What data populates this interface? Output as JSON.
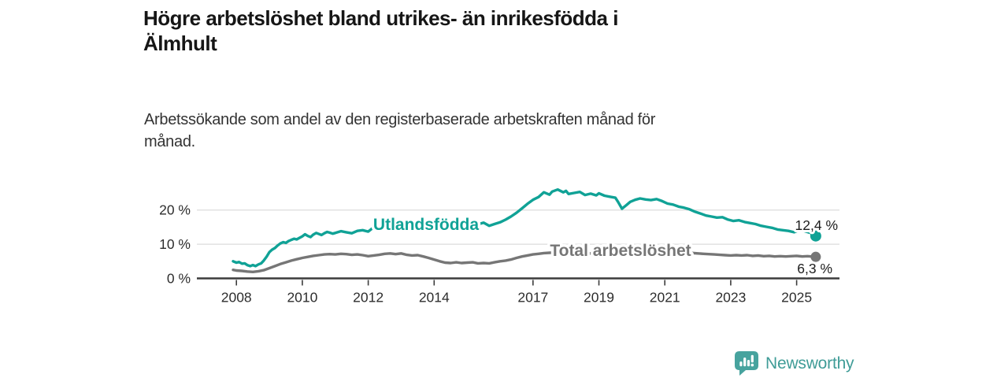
{
  "header": {
    "title_lines": [
      "Högre arbetslöshet bland utrikes- än inrikesfödda i",
      "Älmhult"
    ],
    "subtitle_lines": [
      "Arbetssökande som andel av den registerbaserade arbetskraften månad för",
      "månad."
    ]
  },
  "footer": {
    "brand": "Newsworthy",
    "logo_icon": "bar-chart-speech-bubble-icon"
  },
  "colors": {
    "accent_teal": "#10a296",
    "series_gray": "#767676",
    "grid": "#dcdcdc",
    "axis": "#3b3b3b",
    "text_dark": "#1d1d1d",
    "logo_teal": "#47a39e"
  },
  "chart_data": {
    "type": "line",
    "title": "Högre arbetslöshet bland utrikes- än inrikesfödda i Älmhult",
    "subtitle": "Arbetssökande som andel av den registerbaserade arbetskraften månad för månad.",
    "xlabel": "",
    "ylabel": "",
    "xlim": [
      2006.8,
      2026.3
    ],
    "ylim": [
      0,
      28
    ],
    "grid": "horizontal",
    "legend_position": "inline-on-line",
    "yticks": [
      0,
      10,
      20
    ],
    "ytick_labels": [
      "0 %",
      "10 %",
      "20 %"
    ],
    "xticks": [
      2008,
      2010,
      2012,
      2014,
      2017,
      2019,
      2021,
      2023,
      2025
    ],
    "xtick_labels": [
      "2008",
      "2010",
      "2012",
      "2014",
      "2017",
      "2019",
      "2021",
      "2023",
      "2025"
    ],
    "series": [
      {
        "name": "Utlandsfödda",
        "color": "#10a296",
        "end_value": 12.4,
        "end_label": "12,4 %",
        "points": [
          [
            2007.9,
            5.0
          ],
          [
            2008.0,
            4.6
          ],
          [
            2008.08,
            4.8
          ],
          [
            2008.17,
            4.3
          ],
          [
            2008.25,
            4.4
          ],
          [
            2008.33,
            3.9
          ],
          [
            2008.42,
            3.6
          ],
          [
            2008.5,
            3.9
          ],
          [
            2008.58,
            3.6
          ],
          [
            2008.67,
            4.1
          ],
          [
            2008.75,
            4.4
          ],
          [
            2008.83,
            5.2
          ],
          [
            2008.92,
            6.4
          ],
          [
            2009.0,
            7.7
          ],
          [
            2009.08,
            8.4
          ],
          [
            2009.17,
            8.9
          ],
          [
            2009.25,
            9.6
          ],
          [
            2009.33,
            10.2
          ],
          [
            2009.42,
            10.6
          ],
          [
            2009.5,
            10.4
          ],
          [
            2009.58,
            10.9
          ],
          [
            2009.67,
            11.3
          ],
          [
            2009.75,
            11.6
          ],
          [
            2009.83,
            11.4
          ],
          [
            2009.92,
            11.9
          ],
          [
            2010.0,
            12.3
          ],
          [
            2010.08,
            12.9
          ],
          [
            2010.17,
            12.4
          ],
          [
            2010.25,
            12.1
          ],
          [
            2010.33,
            12.8
          ],
          [
            2010.42,
            13.3
          ],
          [
            2010.5,
            13.0
          ],
          [
            2010.58,
            12.7
          ],
          [
            2010.67,
            13.2
          ],
          [
            2010.75,
            13.6
          ],
          [
            2010.83,
            13.4
          ],
          [
            2010.92,
            13.1
          ],
          [
            2011.0,
            13.3
          ],
          [
            2011.17,
            13.8
          ],
          [
            2011.33,
            13.5
          ],
          [
            2011.5,
            13.2
          ],
          [
            2011.67,
            13.9
          ],
          [
            2011.83,
            14.1
          ],
          [
            2012.0,
            13.7
          ],
          [
            2012.17,
            15.0
          ],
          [
            2012.33,
            14.5
          ],
          [
            2012.5,
            14.9
          ],
          [
            2012.67,
            14.4
          ],
          [
            2012.83,
            14.7
          ],
          [
            2013.0,
            15.1
          ],
          [
            2013.17,
            14.7
          ],
          [
            2013.33,
            15.0
          ],
          [
            2013.5,
            14.5
          ],
          [
            2013.67,
            14.8
          ],
          [
            2013.83,
            14.3
          ],
          [
            2014.0,
            14.6
          ],
          [
            2014.17,
            14.1
          ],
          [
            2014.33,
            14.4
          ],
          [
            2014.5,
            14.7
          ],
          [
            2014.67,
            15.1
          ],
          [
            2014.83,
            14.8
          ],
          [
            2015.0,
            15.2
          ],
          [
            2015.17,
            15.5
          ],
          [
            2015.33,
            15.8
          ],
          [
            2015.5,
            16.3
          ],
          [
            2015.67,
            15.4
          ],
          [
            2015.83,
            15.9
          ],
          [
            2016.0,
            16.4
          ],
          [
            2016.17,
            17.2
          ],
          [
            2016.33,
            18.1
          ],
          [
            2016.5,
            19.2
          ],
          [
            2016.67,
            20.5
          ],
          [
            2016.83,
            21.8
          ],
          [
            2017.0,
            23.0
          ],
          [
            2017.17,
            23.8
          ],
          [
            2017.33,
            25.2
          ],
          [
            2017.5,
            24.5
          ],
          [
            2017.58,
            25.4
          ],
          [
            2017.75,
            26.0
          ],
          [
            2017.92,
            25.2
          ],
          [
            2018.0,
            25.6
          ],
          [
            2018.08,
            24.7
          ],
          [
            2018.25,
            25.0
          ],
          [
            2018.42,
            25.3
          ],
          [
            2018.58,
            24.4
          ],
          [
            2018.75,
            24.8
          ],
          [
            2018.92,
            24.3
          ],
          [
            2019.0,
            24.9
          ],
          [
            2019.17,
            24.2
          ],
          [
            2019.33,
            23.9
          ],
          [
            2019.5,
            23.6
          ],
          [
            2019.58,
            22.4
          ],
          [
            2019.7,
            20.4
          ],
          [
            2019.83,
            21.4
          ],
          [
            2019.95,
            22.4
          ],
          [
            2020.1,
            23.0
          ],
          [
            2020.25,
            23.4
          ],
          [
            2020.42,
            23.1
          ],
          [
            2020.58,
            22.9
          ],
          [
            2020.75,
            23.2
          ],
          [
            2020.92,
            22.6
          ],
          [
            2021.08,
            21.9
          ],
          [
            2021.25,
            21.6
          ],
          [
            2021.42,
            21.0
          ],
          [
            2021.58,
            20.7
          ],
          [
            2021.75,
            20.2
          ],
          [
            2021.92,
            19.5
          ],
          [
            2022.08,
            19.0
          ],
          [
            2022.25,
            18.4
          ],
          [
            2022.42,
            18.1
          ],
          [
            2022.58,
            17.8
          ],
          [
            2022.75,
            17.9
          ],
          [
            2022.92,
            17.2
          ],
          [
            2023.08,
            16.8
          ],
          [
            2023.25,
            17.0
          ],
          [
            2023.42,
            16.5
          ],
          [
            2023.58,
            16.2
          ],
          [
            2023.75,
            15.9
          ],
          [
            2023.92,
            15.4
          ],
          [
            2024.08,
            15.1
          ],
          [
            2024.25,
            14.8
          ],
          [
            2024.42,
            14.3
          ],
          [
            2024.58,
            14.1
          ],
          [
            2024.75,
            13.9
          ],
          [
            2024.92,
            13.5
          ],
          [
            2025.08,
            14.1
          ],
          [
            2025.25,
            13.8
          ],
          [
            2025.42,
            13.3
          ],
          [
            2025.58,
            12.4
          ]
        ]
      },
      {
        "name": "Total arbetslöshet",
        "color": "#767676",
        "end_value": 6.3,
        "end_label": "6,3 %",
        "points": [
          [
            2007.9,
            2.5
          ],
          [
            2008.0,
            2.3
          ],
          [
            2008.17,
            2.2
          ],
          [
            2008.33,
            2.0
          ],
          [
            2008.5,
            1.9
          ],
          [
            2008.67,
            2.1
          ],
          [
            2008.83,
            2.4
          ],
          [
            2009.0,
            3.0
          ],
          [
            2009.17,
            3.6
          ],
          [
            2009.33,
            4.2
          ],
          [
            2009.5,
            4.7
          ],
          [
            2009.67,
            5.2
          ],
          [
            2009.83,
            5.6
          ],
          [
            2010.0,
            6.0
          ],
          [
            2010.17,
            6.3
          ],
          [
            2010.33,
            6.6
          ],
          [
            2010.5,
            6.8
          ],
          [
            2010.67,
            7.0
          ],
          [
            2010.83,
            7.1
          ],
          [
            2011.0,
            7.0
          ],
          [
            2011.17,
            7.2
          ],
          [
            2011.33,
            7.1
          ],
          [
            2011.5,
            6.9
          ],
          [
            2011.67,
            7.0
          ],
          [
            2011.83,
            6.8
          ],
          [
            2012.0,
            6.5
          ],
          [
            2012.17,
            6.7
          ],
          [
            2012.33,
            6.9
          ],
          [
            2012.5,
            7.2
          ],
          [
            2012.67,
            7.3
          ],
          [
            2012.83,
            7.1
          ],
          [
            2013.0,
            7.3
          ],
          [
            2013.17,
            6.9
          ],
          [
            2013.33,
            6.7
          ],
          [
            2013.5,
            6.8
          ],
          [
            2013.67,
            6.4
          ],
          [
            2013.83,
            6.0
          ],
          [
            2014.0,
            5.5
          ],
          [
            2014.17,
            5.0
          ],
          [
            2014.33,
            4.6
          ],
          [
            2014.5,
            4.5
          ],
          [
            2014.67,
            4.7
          ],
          [
            2014.83,
            4.5
          ],
          [
            2015.0,
            4.6
          ],
          [
            2015.17,
            4.7
          ],
          [
            2015.33,
            4.4
          ],
          [
            2015.5,
            4.5
          ],
          [
            2015.67,
            4.4
          ],
          [
            2015.83,
            4.7
          ],
          [
            2016.0,
            5.0
          ],
          [
            2016.17,
            5.2
          ],
          [
            2016.33,
            5.5
          ],
          [
            2016.5,
            6.0
          ],
          [
            2016.67,
            6.4
          ],
          [
            2016.83,
            6.7
          ],
          [
            2017.0,
            7.0
          ],
          [
            2017.17,
            7.2
          ],
          [
            2017.33,
            7.4
          ],
          [
            2017.5,
            7.5
          ],
          [
            2017.75,
            7.6
          ],
          [
            2018.0,
            7.5
          ],
          [
            2018.25,
            7.4
          ],
          [
            2018.5,
            7.5
          ],
          [
            2018.75,
            7.3
          ],
          [
            2019.0,
            7.2
          ],
          [
            2019.25,
            7.3
          ],
          [
            2019.5,
            7.1
          ],
          [
            2019.75,
            7.2
          ],
          [
            2020.0,
            7.4
          ],
          [
            2020.25,
            7.8
          ],
          [
            2020.5,
            8.0
          ],
          [
            2020.75,
            7.9
          ],
          [
            2021.0,
            7.8
          ],
          [
            2021.25,
            7.7
          ],
          [
            2021.5,
            7.6
          ],
          [
            2021.75,
            7.5
          ],
          [
            2022.0,
            7.3
          ],
          [
            2022.17,
            7.2
          ],
          [
            2022.33,
            7.1
          ],
          [
            2022.5,
            7.0
          ],
          [
            2022.67,
            6.9
          ],
          [
            2022.83,
            6.8
          ],
          [
            2023.0,
            6.7
          ],
          [
            2023.17,
            6.8
          ],
          [
            2023.33,
            6.7
          ],
          [
            2023.5,
            6.8
          ],
          [
            2023.67,
            6.6
          ],
          [
            2023.83,
            6.7
          ],
          [
            2024.0,
            6.5
          ],
          [
            2024.17,
            6.6
          ],
          [
            2024.33,
            6.4
          ],
          [
            2024.5,
            6.5
          ],
          [
            2024.67,
            6.4
          ],
          [
            2024.83,
            6.5
          ],
          [
            2025.0,
            6.6
          ],
          [
            2025.17,
            6.4
          ],
          [
            2025.33,
            6.5
          ],
          [
            2025.58,
            6.3
          ]
        ]
      }
    ]
  }
}
